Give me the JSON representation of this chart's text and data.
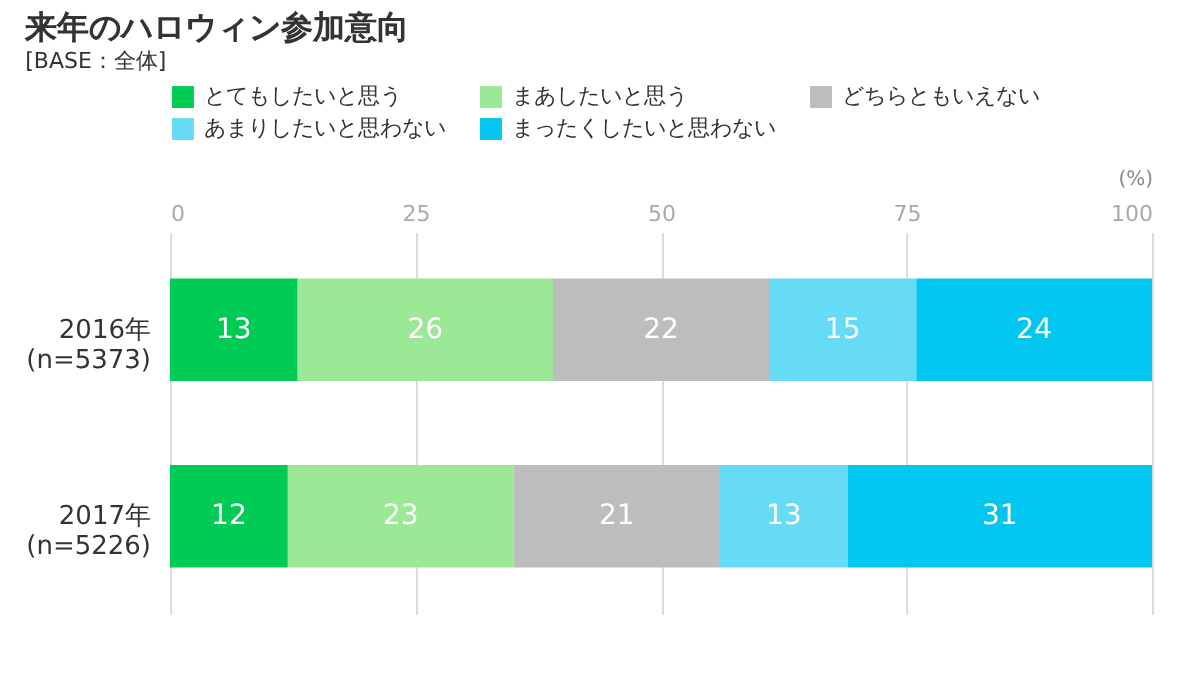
{
  "chart_data": {
    "type": "bar",
    "orientation": "horizontal",
    "stacked": true,
    "title": "来年のハロウィン参加意向",
    "subtitle": "[BASE：全体]",
    "xlabel": "(%)",
    "categories": [
      "2016年\n(n=5373)",
      "2017年\n(n=5226)"
    ],
    "series": [
      {
        "name": "とてもしたいと思う",
        "color": "#00cc55",
        "values": [
          13,
          12
        ]
      },
      {
        "name": "まあしたいと思う",
        "color": "#9be896",
        "values": [
          26,
          23
        ]
      },
      {
        "name": "どちらともいえない",
        "color": "#bdbdbd",
        "values": [
          22,
          21
        ]
      },
      {
        "name": "あまりしたいと思わない",
        "color": "#66dbf5",
        "values": [
          15,
          13
        ]
      },
      {
        "name": "まったくしたいと思わない",
        "color": "#00c6f0",
        "values": [
          24,
          31
        ]
      }
    ],
    "xlim": [
      0,
      100
    ],
    "xticks": [
      0,
      25,
      50,
      75,
      100
    ],
    "grid": true,
    "legend": "top",
    "data_labels": true
  }
}
